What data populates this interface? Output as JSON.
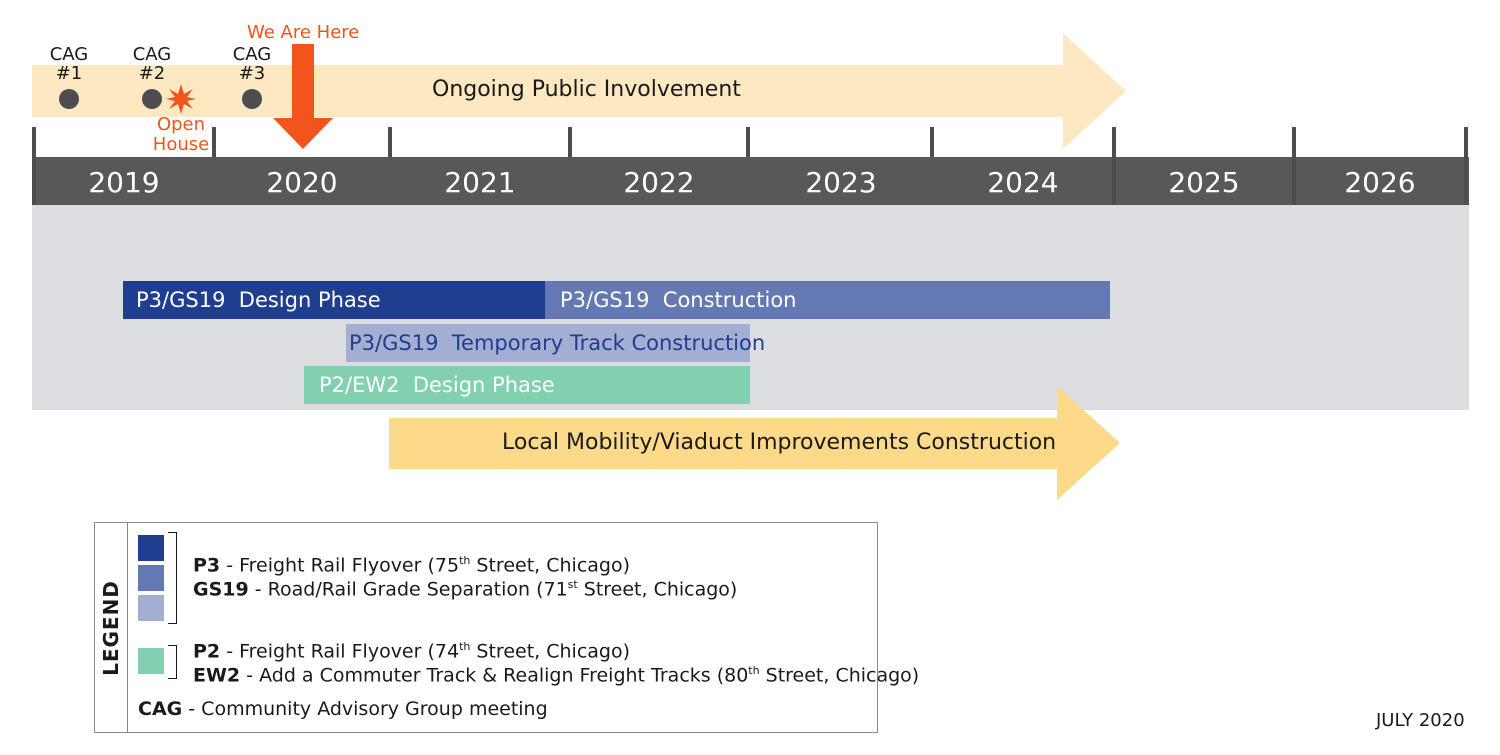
{
  "public_involvement": {
    "label": "Ongoing Public Involvement",
    "color": "#fde8c1"
  },
  "we_are_here": {
    "label": "We Are Here",
    "color": "#f2541b"
  },
  "open_house": {
    "label_line1": "Open",
    "label_line2": "House"
  },
  "cag_meetings": [
    {
      "line1": "CAG",
      "line2": "#1"
    },
    {
      "line1": "CAG",
      "line2": "#2"
    },
    {
      "line1": "CAG",
      "line2": "#3"
    }
  ],
  "years": [
    "2019",
    "2020",
    "2021",
    "2022",
    "2023",
    "2024",
    "2025",
    "2026"
  ],
  "bars": {
    "p3_design": {
      "label": "P3/GS19  Design Phase",
      "color": "#1f3e8f"
    },
    "p3_construction": {
      "label": "P3/GS19  Construction",
      "color": "#6479b3"
    },
    "p3_temp_track": {
      "label": "P3/GS19  Temporary Track Construction",
      "color": "#a3aed3"
    },
    "p2_design": {
      "label": "P2/EW2  Design Phase",
      "color": "#82d0b0"
    }
  },
  "local_mobility": {
    "label": "Local Mobility/Viaduct Improvements Construction",
    "color": "#fdd98a"
  },
  "legend": {
    "title": "LEGEND",
    "p3_code": "P3",
    "p3_desc_pre": " - Freight Rail Flyover (75",
    "p3_sup": "th",
    "p3_desc_post": " Street, Chicago)",
    "gs19_code": "GS19",
    "gs19_desc_pre": " - Road/Rail Grade Separation (71",
    "gs19_sup": "st",
    "gs19_desc_post": " Street, Chicago)",
    "p2_code": "P2",
    "p2_desc_pre": " - Freight Rail Flyover (74",
    "p2_sup": "th",
    "p2_desc_post": " Street, Chicago)",
    "ew2_code": "EW2",
    "ew2_desc_pre": " - Add a Commuter Track & Realign Freight Tracks (80",
    "ew2_sup": "th",
    "ew2_desc_post": " Street, Chicago)",
    "cag_code": "CAG",
    "cag_desc": " - Community Advisory Group meeting"
  },
  "footer": {
    "date": "JULY 2020"
  }
}
